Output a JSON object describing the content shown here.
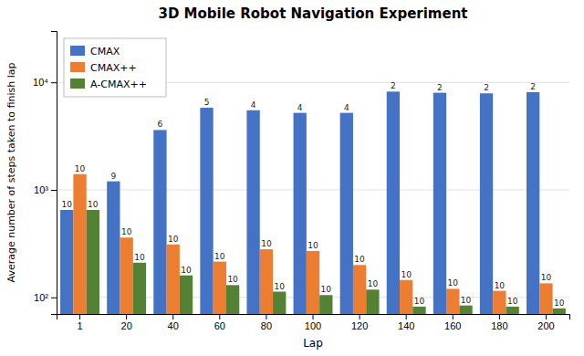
{
  "chart_data": {
    "type": "bar",
    "title": "3D Mobile Robot Navigation Experiment",
    "xlabel": "Lap",
    "ylabel": "Average number of steps taken to finish lap",
    "categories": [
      1,
      20,
      40,
      60,
      80,
      100,
      120,
      140,
      160,
      180,
      200
    ],
    "series": [
      {
        "name": "CMAX",
        "color": "#4472C4",
        "values": [
          650,
          1200,
          3600,
          5800,
          5500,
          5200,
          5200,
          8200,
          8000,
          7900,
          8100
        ],
        "labels": [
          10,
          9,
          6,
          5,
          4,
          4,
          4,
          2,
          2,
          2,
          2
        ]
      },
      {
        "name": "CMAX++",
        "color": "#ED7D31",
        "values": [
          1400,
          360,
          310,
          215,
          280,
          270,
          200,
          145,
          120,
          115,
          135
        ],
        "labels": [
          10,
          10,
          10,
          10,
          10,
          10,
          10,
          10,
          10,
          10,
          10
        ]
      },
      {
        "name": "A-CMAX++",
        "color": "#548235",
        "values": [
          650,
          210,
          160,
          130,
          113,
          105,
          118,
          82,
          84,
          82,
          79
        ],
        "labels": [
          10,
          10,
          10,
          10,
          10,
          10,
          10,
          10,
          10,
          10,
          10
        ]
      }
    ],
    "log": "y",
    "ylim": [
      70,
      30000
    ],
    "yticks": [
      {
        "value": 100,
        "label": "10²"
      },
      {
        "value": 1000,
        "label": "10³"
      },
      {
        "value": 10000,
        "label": "10⁴"
      }
    ],
    "grid": true,
    "legend": "upper left"
  }
}
